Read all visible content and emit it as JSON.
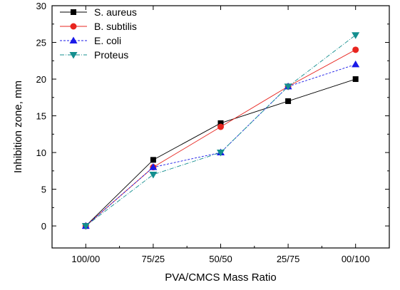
{
  "chart_data": {
    "type": "line",
    "title": "",
    "xlabel": "PVA/CMCS Mass Ratio",
    "ylabel": "Inhibition zone, mm",
    "categories": [
      "100/00",
      "75/25",
      "50/50",
      "25/75",
      "00/100"
    ],
    "ylim": [
      -3,
      30
    ],
    "yticks": [
      0,
      5,
      10,
      15,
      20,
      25,
      30
    ],
    "grid": false,
    "legend_position": "top-left",
    "series": [
      {
        "name": "S. aureus",
        "color": "#000000",
        "marker": "square",
        "values": [
          0,
          9,
          14,
          17,
          20
        ]
      },
      {
        "name": "B. subtilis",
        "color": "#e8251f",
        "marker": "circle",
        "values": [
          0,
          8,
          13.5,
          19,
          24
        ]
      },
      {
        "name": "E. coli",
        "color": "#1a1ae8",
        "marker": "triangle-up",
        "values": [
          0,
          8,
          10,
          19,
          22
        ]
      },
      {
        "name": "Proteus",
        "color": "#148f8f",
        "marker": "triangle-down",
        "values": [
          0,
          7,
          10,
          19,
          26
        ]
      }
    ]
  }
}
